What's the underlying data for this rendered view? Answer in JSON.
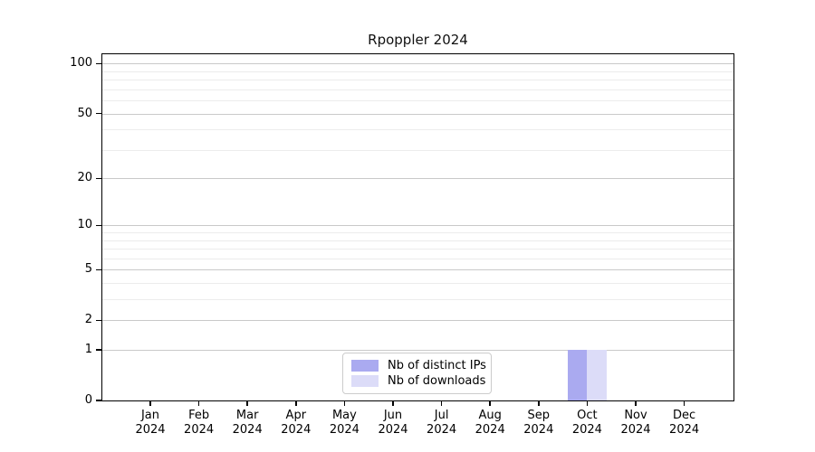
{
  "chart_data": {
    "type": "bar",
    "title": "Rpoppler 2024",
    "xlabel": "",
    "ylabel": "",
    "x_tick_months": [
      "Jan",
      "Feb",
      "Mar",
      "Apr",
      "May",
      "Jun",
      "Jul",
      "Aug",
      "Sep",
      "Oct",
      "Nov",
      "Dec"
    ],
    "x_tick_year": "2024",
    "categories": [
      "Jan 2024",
      "Feb 2024",
      "Mar 2024",
      "Apr 2024",
      "May 2024",
      "Jun 2024",
      "Jul 2024",
      "Aug 2024",
      "Sep 2024",
      "Oct 2024",
      "Nov 2024",
      "Dec 2024"
    ],
    "series": [
      {
        "name": "Nb of distinct IPs",
        "color": "#aaaaf0",
        "values": [
          0,
          0,
          0,
          0,
          0,
          0,
          0,
          0,
          0,
          1,
          0,
          0
        ]
      },
      {
        "name": "Nb of downloads",
        "color": "#dcdcf8",
        "values": [
          0,
          0,
          0,
          0,
          0,
          0,
          0,
          0,
          0,
          1,
          0,
          0
        ]
      }
    ],
    "yscale": "log1p",
    "ylim": [
      0,
      114
    ],
    "y_major_ticks": [
      0,
      1,
      2,
      5,
      10,
      20,
      50,
      100
    ],
    "y_minor_gridlines": [
      3,
      4,
      6,
      7,
      8,
      9,
      30,
      40,
      60,
      70,
      80,
      90
    ],
    "grid": "horizontal",
    "grid_major_color": "#c9c9c9",
    "grid_minor_color": "#ececec",
    "axis_color": "#000000",
    "legend_position": "bottom-center-inside"
  }
}
